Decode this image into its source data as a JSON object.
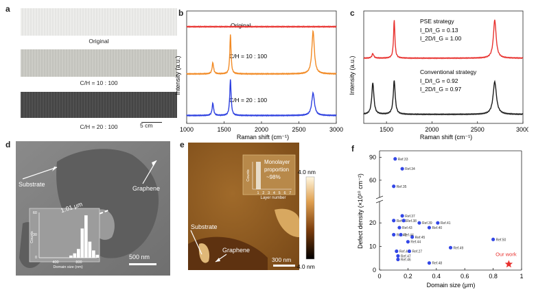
{
  "panels": {
    "a": {
      "label": "a",
      "photos": [
        {
          "caption": "Original",
          "color": "#ececea"
        },
        {
          "caption": "C/H = 10 : 100",
          "color": "#c9c9c3"
        },
        {
          "caption": "C/H = 20 : 100",
          "color": "#474747"
        }
      ],
      "scale_bar": "5 cm"
    },
    "b": {
      "label": "b",
      "chart_data": {
        "type": "line",
        "xlabel": "Raman shift (cm⁻¹)",
        "ylabel": "Intensity (a.u.)",
        "xlim": [
          1000,
          3000
        ],
        "xticks": [
          1000,
          1500,
          2000,
          2500,
          3000
        ],
        "series": [
          {
            "name": "Original",
            "color": "#e8312e",
            "offset": 0.86,
            "peaks": []
          },
          {
            "name": "C/H = 10 : 100",
            "color": "#f28a24",
            "offset": 0.44,
            "peaks": [
              [
                1350,
                0.1,
                12
              ],
              [
                1585,
                0.35,
                10
              ],
              [
                2690,
                0.38,
                20
              ]
            ]
          },
          {
            "name": "C/H = 20 : 100",
            "color": "#2c3fe0",
            "offset": 0.07,
            "peaks": [
              [
                1350,
                0.11,
                12
              ],
              [
                1585,
                0.32,
                11
              ],
              [
                2690,
                0.2,
                22
              ]
            ]
          }
        ]
      }
    },
    "c": {
      "label": "c",
      "chart_data": {
        "type": "line",
        "xlabel": "Raman shift (cm⁻¹)",
        "ylabel": "Intensity (a.u.)",
        "xlim": [
          1250,
          3000
        ],
        "xticks": [
          1500,
          2000,
          2500,
          3000
        ],
        "series": [
          {
            "name": "PSE strategy",
            "color": "#e8312e",
            "offset": 0.58,
            "peaks": [
              [
                1350,
                0.04,
                12
              ],
              [
                1585,
                0.34,
                9
              ],
              [
                2690,
                0.34,
                18
              ]
            ],
            "annot1": "I_D/I_G = 0.13",
            "annot2": "I_2D/I_G = 1.00"
          },
          {
            "name": "Conventional strategy",
            "color": "#1a1a1a",
            "offset": 0.08,
            "peaks": [
              [
                1350,
                0.28,
                14
              ],
              [
                1585,
                0.3,
                13
              ],
              [
                2690,
                0.29,
                22
              ]
            ],
            "annot1": "I_D/I_G = 0.92",
            "annot2": "I_2D/I_G = 0.97"
          }
        ]
      }
    },
    "d": {
      "label": "d",
      "substrate": "Substrate",
      "graphene": "Graphene",
      "measure": "1.01 μm",
      "scale_bar": "500 nm",
      "inset": {
        "ylabel": "Counts",
        "xlabel": "Domain size (nm)",
        "yticks": [
          "0",
          "30",
          "60"
        ],
        "xticks": [
          "400",
          "800"
        ],
        "bars": [
          3,
          6,
          12,
          40,
          58,
          22,
          10,
          4
        ]
      }
    },
    "e": {
      "label": "e",
      "substrate": "Substrate",
      "graphene": "Graphene",
      "scale_bar": "300 nm",
      "colorbar_top": "4.0 nm",
      "colorbar_bottom": "-4.0 nm",
      "inset": {
        "ylabel": "Counts",
        "xlabel": "Layer number",
        "xticks": [
          "1",
          "2",
          "3",
          "4",
          "5",
          "6",
          "7"
        ],
        "text1": "Monolayer",
        "text2": "proportion",
        "text3": "~98%"
      }
    },
    "f": {
      "label": "f",
      "chart_data": {
        "type": "scatter",
        "xlabel": "Domain size (μm)",
        "ylabel": "Defect density (×10¹⁰ cm⁻²)",
        "xlim": [
          0,
          1
        ],
        "xticks": [
          "0",
          "0.2",
          "0.4",
          "0.6",
          "0.8",
          "1"
        ],
        "yticks_lower": [
          0,
          10,
          20
        ],
        "yticks_upper": [
          60,
          90
        ],
        "points": [
          {
            "label": "Ref.33",
            "x": 0.11,
            "y": 88
          },
          {
            "label": "Ref.34",
            "x": 0.16,
            "y": 75
          },
          {
            "label": "Ref.35",
            "x": 0.1,
            "y": 52
          },
          {
            "label": "Ref.37",
            "x": 0.16,
            "y": 23
          },
          {
            "label": "Ref.36",
            "x": 0.1,
            "y": 21
          },
          {
            "label": "Ref.38",
            "x": 0.17,
            "y": 21
          },
          {
            "label": "Ref.39",
            "x": 0.28,
            "y": 20
          },
          {
            "label": "Ref.41",
            "x": 0.41,
            "y": 20
          },
          {
            "label": "Ref.43",
            "x": 0.14,
            "y": 18
          },
          {
            "label": "Ref.40",
            "x": 0.35,
            "y": 18
          },
          {
            "label": "Ref.42",
            "x": 0.1,
            "y": 15
          },
          {
            "label": "Ref.44",
            "x": 0.15,
            "y": 15
          },
          {
            "label": "Ref.45",
            "x": 0.23,
            "y": 14
          },
          {
            "label": "Ref.44",
            "x": 0.2,
            "y": 12
          },
          {
            "label": "Ref.49",
            "x": 0.5,
            "y": 9.5
          },
          {
            "label": "Ref.50",
            "x": 0.8,
            "y": 13
          },
          {
            "label": "Ref.46",
            "x": 0.12,
            "y": 8
          },
          {
            "label": "Ref.27",
            "x": 0.21,
            "y": 8
          },
          {
            "label": "Ref.47",
            "x": 0.13,
            "y": 6
          },
          {
            "label": "Ref.46",
            "x": 0.13,
            "y": 4.5
          },
          {
            "label": "Ref.48",
            "x": 0.35,
            "y": 3
          }
        ],
        "highlight": {
          "label": "Our work",
          "x": 0.91,
          "y": 2.5,
          "color": "#e8312e"
        },
        "point_color": "#3347e6"
      }
    }
  }
}
